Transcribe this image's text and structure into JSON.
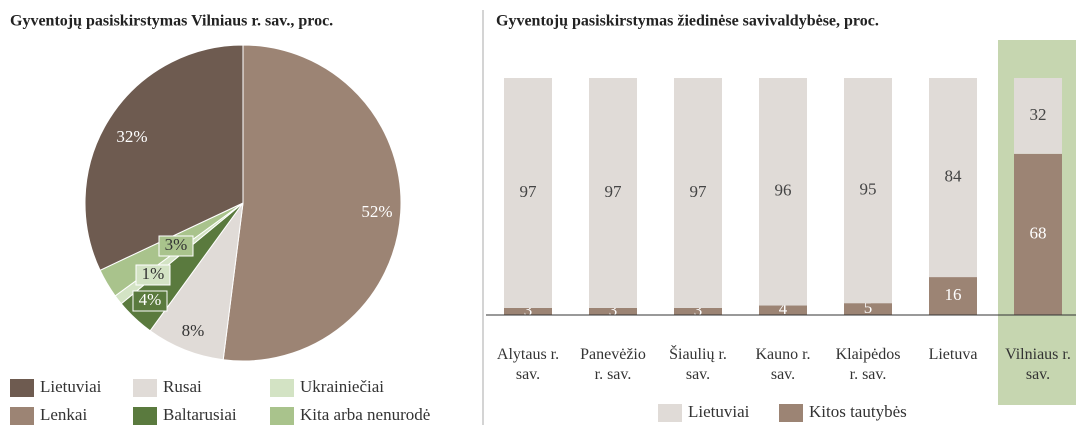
{
  "chart_data": [
    {
      "type": "pie",
      "title": "Gyventojų pasiskirstymas Vilniaus r. sav., proc.",
      "categories": [
        "Lenkai",
        "Rusai",
        "Baltarusiai",
        "Ukrainiečiai",
        "Kita arba nenurodė",
        "Lietuviai"
      ],
      "values": [
        52,
        8,
        4,
        1,
        3,
        32
      ],
      "value_labels": [
        "52%",
        "8%",
        "4%",
        "1%",
        "3%",
        "32%"
      ],
      "colors": [
        "#9c8474",
        "#e0dbd7",
        "#5a7a3e",
        "#d3e3c4",
        "#a9c38c",
        "#6e5b50"
      ]
    },
    {
      "type": "bar",
      "stacked": true,
      "title": "Gyventojų pasiskirstymas žiedinėse savivaldybėse, proc.",
      "categories": [
        "Alytaus r. sav.",
        "Panevėžio r. sav.",
        "Šiaulių r. sav.",
        "Kauno r. sav.",
        "Klaipėdos r. sav.",
        "Lietuva",
        "Vilniaus r. sav."
      ],
      "series": [
        {
          "name": "Lietuviai",
          "color": "#e0dbd7",
          "values": [
            97,
            97,
            97,
            96,
            95,
            84,
            32
          ]
        },
        {
          "name": "Kitos tautybės",
          "color": "#9c8474",
          "values": [
            3,
            3,
            3,
            4,
            5,
            16,
            68
          ]
        }
      ],
      "ylim": [
        0,
        100
      ],
      "highlight": "Vilniaus r. sav.",
      "highlight_color": "#c6d6b0"
    }
  ]
}
